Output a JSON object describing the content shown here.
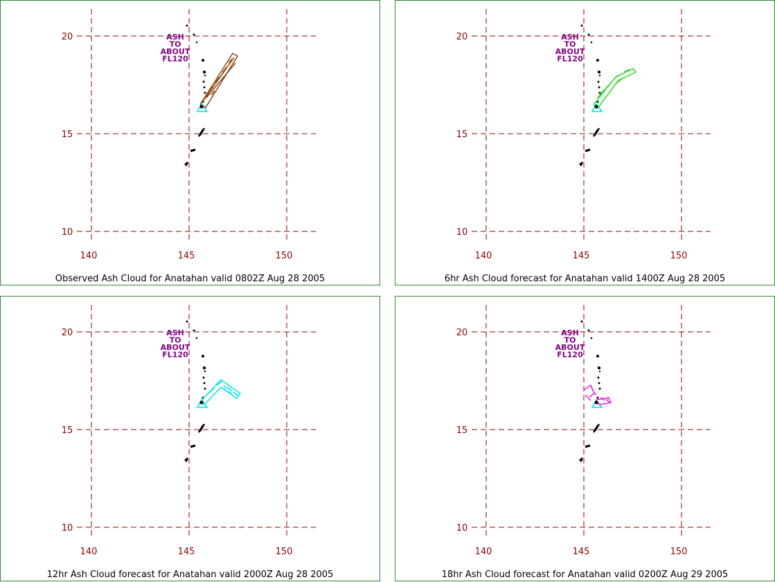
{
  "map": {
    "x_ticks": [
      "140",
      "145",
      "150"
    ],
    "y_ticks": [
      "20",
      "15",
      "10"
    ],
    "grid_color": "#8b0000",
    "label_color": "#8b0000",
    "annotation_color": "#800080",
    "annotation_lines": [
      "ASH",
      "TO",
      "ABOUT",
      "FL120"
    ]
  },
  "panels": [
    {
      "caption": "Observed Ash Cloud for Anatahan valid 0802Z Aug 28 2005",
      "cloud_color": "#8b4513"
    },
    {
      "caption": "6hr Ash Cloud forecast for Anatahan valid 1400Z Aug 28 2005",
      "cloud_color": "#22dd22"
    },
    {
      "caption": "12hr Ash Cloud forecast for Anatahan valid 2000Z Aug 28 2005",
      "cloud_color": "#00e5e5"
    },
    {
      "caption": "18hr Ash Cloud forecast for Anatahan valid 0200Z Aug 29 2005",
      "cloud_color": "#e020e0"
    }
  ],
  "volcano_marker_color": "#00e5e5"
}
